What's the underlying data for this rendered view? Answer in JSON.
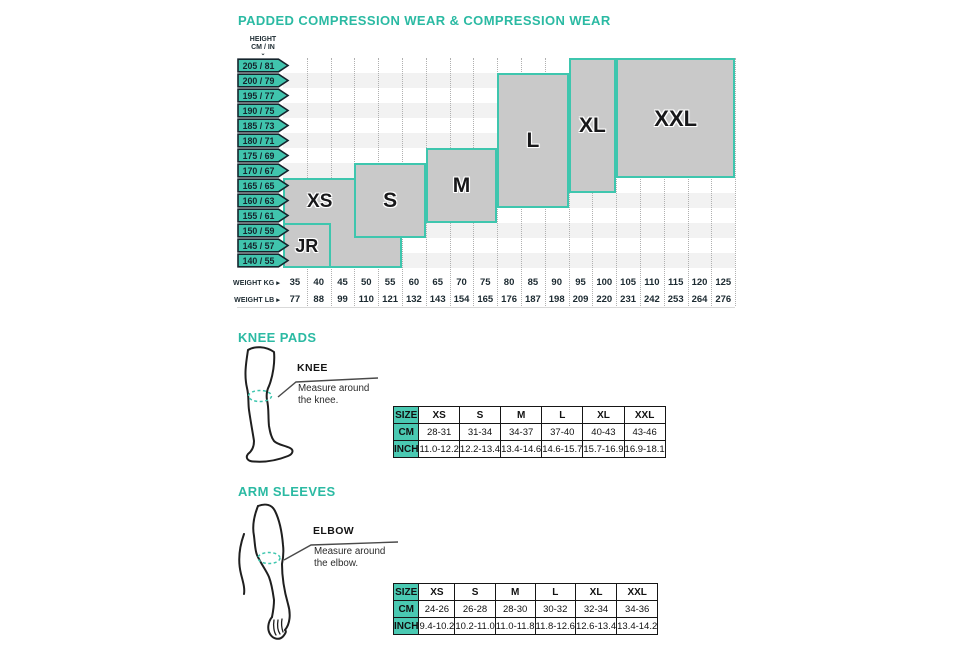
{
  "colors": {
    "teal": "#2bbaa3",
    "tag_fill": "#40c4ad",
    "tag_border": "#15242c",
    "box_fill": "#c9c9c9",
    "box_border": "#3ec6ae",
    "stripe": "#f2f2f2",
    "grid_dots": "#b0b0b0",
    "table_header_bg": "#4ac9b2",
    "ink": "#1c2a31"
  },
  "compression_chart": {
    "title": "PADDED COMPRESSION WEAR & COMPRESSION WEAR",
    "height_axis_label": {
      "line1": "HEIGHT",
      "line2": "CM / IN",
      "arrow": "⌄"
    },
    "height_tags": [
      "205 / 81",
      "200 / 79",
      "195 / 77",
      "190 / 75",
      "185 / 73",
      "180 / 71",
      "175 / 69",
      "170 / 67",
      "165 / 65",
      "160 / 63",
      "155 / 61",
      "150 / 59",
      "145 / 57",
      "140 / 55"
    ],
    "weight_kg": {
      "label": "WEIGHT KG",
      "arrow": "▸",
      "values": [
        "35",
        "40",
        "45",
        "50",
        "55",
        "60",
        "65",
        "70",
        "75",
        "80",
        "85",
        "90",
        "95",
        "100",
        "105",
        "110",
        "115",
        "120",
        "125"
      ]
    },
    "weight_lb": {
      "label": "WEIGHT LB",
      "arrow": "▸",
      "values": [
        "77",
        "88",
        "99",
        "110",
        "121",
        "132",
        "143",
        "154",
        "165",
        "176",
        "187",
        "198",
        "209",
        "220",
        "231",
        "242",
        "253",
        "264",
        "276"
      ]
    },
    "size_boxes": [
      {
        "name": "xs-extension",
        "label": "",
        "cols": [
          2,
          4
        ],
        "rows": [
          11,
          13
        ],
        "borders": "rb",
        "font": 0
      },
      {
        "name": "xs",
        "label": "XS",
        "cols": [
          0,
          2
        ],
        "rows": [
          8,
          13
        ],
        "borders": "ltb",
        "font": 19,
        "label_rows": [
          8,
          10
        ]
      },
      {
        "name": "jr",
        "label": "JR",
        "cols": [
          0,
          1
        ],
        "rows": [
          11,
          13
        ],
        "borders": "all",
        "font": 18
      },
      {
        "name": "s",
        "label": "S",
        "cols": [
          3,
          5
        ],
        "rows": [
          7,
          11
        ],
        "borders": "all",
        "font": 21
      },
      {
        "name": "m",
        "label": "M",
        "cols": [
          6,
          8
        ],
        "rows": [
          6,
          10
        ],
        "borders": "all",
        "font": 21
      },
      {
        "name": "l",
        "label": "L",
        "cols": [
          9,
          11
        ],
        "rows": [
          1,
          9
        ],
        "borders": "all",
        "font": 21
      },
      {
        "name": "xl",
        "label": "XL",
        "cols": [
          12,
          13
        ],
        "rows": [
          0,
          8
        ],
        "borders": "all",
        "font": 21
      },
      {
        "name": "xxl",
        "label": "XXL",
        "cols": [
          14,
          18
        ],
        "rows": [
          0,
          7
        ],
        "borders": "all",
        "font": 22
      }
    ]
  },
  "knee_pads": {
    "title": "KNEE PADS",
    "callout": {
      "title": "KNEE",
      "line1": "Measure around",
      "line2": "the knee."
    },
    "table": {
      "corner": "SIZE",
      "row_cm": "CM",
      "row_inch": "INCH",
      "columns": [
        "XS",
        "S",
        "M",
        "L",
        "XL",
        "XXL"
      ],
      "cm": [
        "28-31",
        "31-34",
        "34-37",
        "37-40",
        "40-43",
        "43-46"
      ],
      "inch": [
        "11.0-12.2",
        "12.2-13.4",
        "13.4-14.6",
        "14.6-15.7",
        "15.7-16.9",
        "16.9-18.1"
      ]
    }
  },
  "arm_sleeves": {
    "title": "ARM SLEEVES",
    "callout": {
      "title": "ELBOW",
      "line1": "Measure around",
      "line2": "the elbow."
    },
    "table": {
      "corner": "SIZE",
      "row_cm": "CM",
      "row_inch": "INCH",
      "columns": [
        "XS",
        "S",
        "M",
        "L",
        "XL",
        "XXL"
      ],
      "cm": [
        "24-26",
        "26-28",
        "28-30",
        "30-32",
        "32-34",
        "34-36"
      ],
      "inch": [
        "9.4-10.2",
        "10.2-11.0",
        "11.0-11.8",
        "11.8-12.6",
        "12.6-13.4",
        "13.4-14.2"
      ]
    }
  },
  "chart_data": [
    {
      "type": "heatmap",
      "title": "PADDED COMPRESSION WEAR & COMPRESSION WEAR",
      "xlabel": "WEIGHT KG / WEIGHT LB",
      "ylabel": "HEIGHT CM / IN",
      "x_ticks_kg": [
        35,
        40,
        45,
        50,
        55,
        60,
        65,
        70,
        75,
        80,
        85,
        90,
        95,
        100,
        105,
        110,
        115,
        120,
        125
      ],
      "x_ticks_lb": [
        77,
        88,
        99,
        110,
        121,
        132,
        143,
        154,
        165,
        176,
        187,
        198,
        209,
        220,
        231,
        242,
        253,
        264,
        276
      ],
      "y_ticks_cm_in": [
        "205/81",
        "200/79",
        "195/77",
        "190/75",
        "185/73",
        "180/71",
        "175/69",
        "170/67",
        "165/65",
        "160/63",
        "155/61",
        "150/59",
        "145/57",
        "140/55"
      ],
      "regions": [
        {
          "size": "JR",
          "weight_kg_range": [
            35,
            40
          ],
          "weight_lb_range": [
            77,
            88
          ],
          "height_cm_range": [
            140,
            150
          ]
        },
        {
          "size": "XS",
          "weight_kg_range": [
            35,
            45
          ],
          "weight_lb_range": [
            77,
            99
          ],
          "height_cm_range": [
            140,
            165
          ]
        },
        {
          "size": "S",
          "weight_kg_range": [
            50,
            60
          ],
          "weight_lb_range": [
            110,
            132
          ],
          "height_cm_range": [
            150,
            170
          ]
        },
        {
          "size": "M",
          "weight_kg_range": [
            65,
            75
          ],
          "weight_lb_range": [
            143,
            165
          ],
          "height_cm_range": [
            155,
            175
          ]
        },
        {
          "size": "L",
          "weight_kg_range": [
            80,
            90
          ],
          "weight_lb_range": [
            176,
            198
          ],
          "height_cm_range": [
            160,
            200
          ]
        },
        {
          "size": "XL",
          "weight_kg_range": [
            95,
            100
          ],
          "weight_lb_range": [
            209,
            220
          ],
          "height_cm_range": [
            165,
            205
          ]
        },
        {
          "size": "XXL",
          "weight_kg_range": [
            105,
            125
          ],
          "weight_lb_range": [
            231,
            276
          ],
          "height_cm_range": [
            170,
            205
          ]
        }
      ],
      "legend_position": "none",
      "grid": "dotted-vertical"
    },
    {
      "type": "table",
      "title": "KNEE PADS",
      "columns": [
        "SIZE",
        "XS",
        "S",
        "M",
        "L",
        "XL",
        "XXL"
      ],
      "rows": [
        [
          "CM",
          "28-31",
          "31-34",
          "34-37",
          "37-40",
          "40-43",
          "43-46"
        ],
        [
          "INCH",
          "11.0-12.2",
          "12.2-13.4",
          "13.4-14.6",
          "14.6-15.7",
          "15.7-16.9",
          "16.9-18.1"
        ]
      ]
    },
    {
      "type": "table",
      "title": "ARM SLEEVES",
      "columns": [
        "SIZE",
        "XS",
        "S",
        "M",
        "L",
        "XL",
        "XXL"
      ],
      "rows": [
        [
          "CM",
          "24-26",
          "26-28",
          "28-30",
          "30-32",
          "32-34",
          "34-36"
        ],
        [
          "INCH",
          "9.4-10.2",
          "10.2-11.0",
          "11.0-11.8",
          "11.8-12.6",
          "12.6-13.4",
          "13.4-14.2"
        ]
      ]
    }
  ]
}
